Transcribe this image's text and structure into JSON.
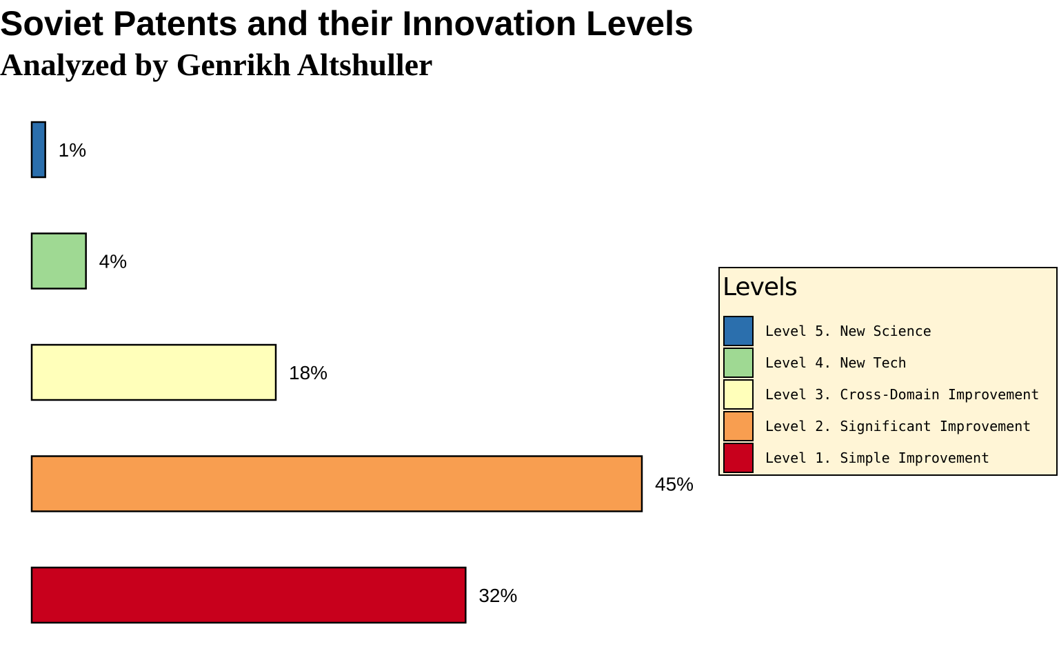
{
  "chart_data": {
    "type": "bar",
    "orientation": "horizontal",
    "title": "Soviet Patents and their Innovation Levels",
    "subtitle": "Analyzed by Genrikh Altshuller",
    "categories": [
      "Level 5. New Science",
      "Level 4. New Tech",
      "Level 3. Cross-Domain Improvement",
      "Level 2. Significant Improvement",
      "Level 1. Simple Improvement"
    ],
    "values": [
      1,
      4,
      18,
      45,
      32
    ],
    "value_labels": [
      "1%",
      "4%",
      "18%",
      "45%",
      "32%"
    ],
    "colors": [
      "#2b6fad",
      "#9fd993",
      "#ffffba",
      "#f89e50",
      "#c8001c"
    ],
    "xlim": [
      0,
      45
    ],
    "grid": false,
    "legend": {
      "title": "Levels",
      "placement": "right",
      "background": "#fff5d6"
    }
  }
}
